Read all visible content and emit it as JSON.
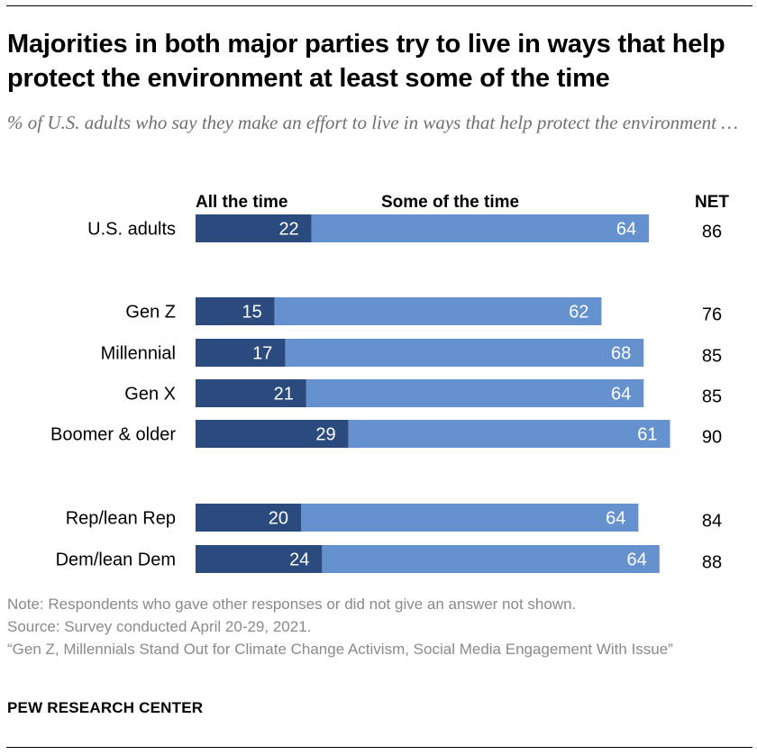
{
  "title": "Majorities in both major parties try to live in ways that help protect the environment at least some of the time",
  "subtitle": "% of U.S. adults who say they make an effort to live in ways that help protect the environment …",
  "chart_data": {
    "type": "bar",
    "orientation": "horizontal",
    "stacked": true,
    "categories": [
      "U.S. adults",
      "Gen Z",
      "Millennial",
      "Gen X",
      "Boomer & older",
      "Rep/lean Rep",
      "Dem/lean Dem"
    ],
    "series": [
      {
        "name": "All the time",
        "values": [
          22,
          15,
          17,
          21,
          29,
          20,
          24
        ],
        "color": "#2b4a7e"
      },
      {
        "name": "Some of the time",
        "values": [
          64,
          62,
          68,
          64,
          61,
          64,
          64
        ],
        "color": "#6592cf"
      }
    ],
    "net_label": "NET",
    "net": [
      86,
      76,
      85,
      85,
      90,
      84,
      88
    ]
  },
  "note": "Note: Respondents who gave other responses or did not give an answer not shown.",
  "source": "Source: Survey conducted April 20-29, 2021.",
  "report": "“Gen Z, Millennials Stand Out for Climate Change Activism, Social Media Engagement With Issue”",
  "brand": "PEW RESEARCH CENTER"
}
